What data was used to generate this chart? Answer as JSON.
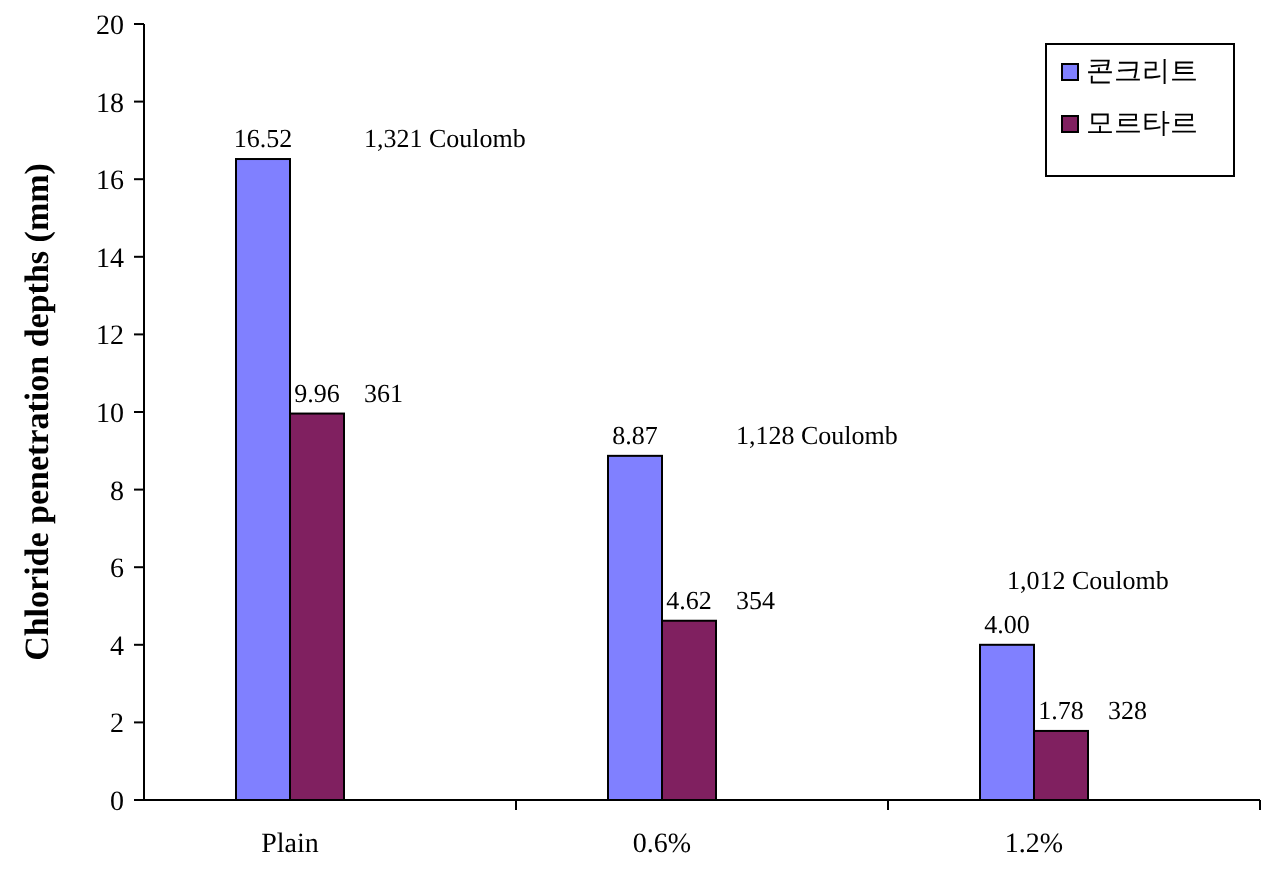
{
  "chart_data": {
    "type": "bar",
    "ylabel": "Chloride penetration depths (mm)",
    "categories": [
      "Plain",
      "0.6%",
      "1.2%"
    ],
    "series": [
      {
        "name": "콘크리트",
        "color": "#8080ff",
        "values": [
          16.52,
          8.87,
          4.0
        ],
        "value_labels": [
          "16.52",
          "8.87",
          "4.00"
        ]
      },
      {
        "name": "모르타르",
        "color": "#802060",
        "values": [
          9.96,
          4.62,
          1.78
        ],
        "value_labels": [
          "9.96",
          "4.62",
          "1.78"
        ]
      }
    ],
    "ylim": [
      0,
      20
    ],
    "yticks": [
      0,
      2,
      4,
      6,
      8,
      10,
      12,
      14,
      16,
      18,
      20
    ],
    "grid": false,
    "legend": "top right",
    "annotations": [
      {
        "text": "1,321 Coulomb",
        "x": "Plain",
        "y": 16.52
      },
      {
        "text": "361",
        "x": "Plain",
        "y": 9.96
      },
      {
        "text": "1,128 Coulomb",
        "x": "0.6%",
        "y": 8.87
      },
      {
        "text": "354",
        "x": "0.6%",
        "y": 4.62
      },
      {
        "text": "1,012 Coulomb",
        "x": "1.2%",
        "y": 4.0
      },
      {
        "text": "328",
        "x": "1.2%",
        "y": 1.78
      }
    ]
  }
}
